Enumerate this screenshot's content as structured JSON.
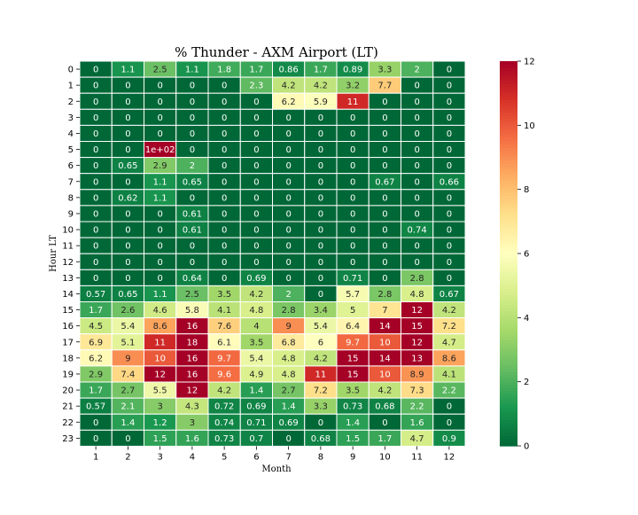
{
  "chart_data": {
    "type": "heatmap",
    "title": "% Thunder - AXM Airport (LT)",
    "xlabel": "Month",
    "ylabel": "Hour LT",
    "x": [
      "1",
      "2",
      "3",
      "4",
      "5",
      "6",
      "7",
      "8",
      "9",
      "10",
      "11",
      "12"
    ],
    "y": [
      "0",
      "1",
      "2",
      "3",
      "4",
      "5",
      "6",
      "7",
      "8",
      "9",
      "10",
      "11",
      "12",
      "13",
      "14",
      "15",
      "16",
      "17",
      "18",
      "19",
      "20",
      "21",
      "22",
      "23"
    ],
    "values": [
      [
        0,
        1.1,
        2.5,
        1.1,
        1.8,
        1.7,
        0.86,
        1.7,
        0.89,
        3.3,
        2,
        0
      ],
      [
        0,
        0,
        0,
        0,
        0,
        2.3,
        4.2,
        4.2,
        3.2,
        7.7,
        0,
        0
      ],
      [
        0,
        0,
        0,
        0,
        0,
        0,
        6.2,
        5.9,
        11,
        0,
        0,
        0
      ],
      [
        0,
        0,
        0,
        0,
        0,
        0,
        0,
        0,
        0,
        0,
        0,
        0
      ],
      [
        0,
        0,
        0,
        0,
        0,
        0,
        0,
        0,
        0,
        0,
        0,
        0
      ],
      [
        0,
        0,
        100,
        0,
        0,
        0,
        0,
        0,
        0,
        0,
        0,
        0
      ],
      [
        0,
        0.65,
        2.9,
        2,
        0,
        0,
        0,
        0,
        0,
        0,
        0,
        0
      ],
      [
        0,
        0,
        1.1,
        0.65,
        0,
        0,
        0,
        0,
        0,
        0.67,
        0,
        0.66
      ],
      [
        0,
        0.62,
        1.1,
        0,
        0,
        0,
        0,
        0,
        0,
        0,
        0,
        0
      ],
      [
        0,
        0,
        0,
        0.61,
        0,
        0,
        0,
        0,
        0,
        0,
        0,
        0
      ],
      [
        0,
        0,
        0,
        0.61,
        0,
        0,
        0,
        0,
        0,
        0,
        0.74,
        0
      ],
      [
        0,
        0,
        0,
        0,
        0,
        0,
        0,
        0,
        0,
        0,
        0,
        0
      ],
      [
        0,
        0,
        0,
        0,
        0,
        0,
        0,
        0,
        0,
        0,
        0,
        0
      ],
      [
        0,
        0,
        0,
        0.64,
        0,
        0.69,
        0,
        0,
        0.71,
        0,
        2.8,
        0
      ],
      [
        0.57,
        0.65,
        1.1,
        2.5,
        3.5,
        4.2,
        2,
        0,
        5.7,
        2.8,
        4.8,
        0.67
      ],
      [
        1.7,
        2.6,
        4.6,
        5.8,
        4.1,
        4.8,
        2.8,
        3.4,
        5,
        7,
        12,
        4.2
      ],
      [
        4.5,
        5.4,
        8.6,
        16,
        7.6,
        4,
        9,
        5.4,
        6.4,
        14,
        15,
        7.2
      ],
      [
        6.9,
        5.1,
        11,
        18,
        6.1,
        3.5,
        6.8,
        6,
        9.7,
        10,
        12,
        4.7
      ],
      [
        6.2,
        9,
        10,
        16,
        9.7,
        5.4,
        4.8,
        4.2,
        15,
        14,
        13,
        8.6
      ],
      [
        2.9,
        7.4,
        12,
        16,
        9.6,
        4.9,
        4.8,
        11,
        15,
        10,
        8.9,
        4.1
      ],
      [
        1.7,
        2.7,
        5.5,
        12,
        4.2,
        1.4,
        2.7,
        7.2,
        3.5,
        4.2,
        7.3,
        2.2
      ],
      [
        0.57,
        2.1,
        3,
        4.3,
        0.72,
        0.69,
        1.4,
        3.3,
        0.73,
        0.68,
        2.2,
        0
      ],
      [
        0,
        1.4,
        1.2,
        3,
        0.74,
        0.71,
        0.69,
        0,
        1.4,
        0,
        1.6,
        0
      ],
      [
        0,
        0,
        1.5,
        1.6,
        0.73,
        0.7,
        0,
        0.68,
        1.5,
        1.7,
        4.7,
        0.9
      ]
    ],
    "cell_labels": [
      [
        "0",
        "1.1",
        "2.5",
        "1.1",
        "1.8",
        "1.7",
        "0.86",
        "1.7",
        "0.89",
        "3.3",
        "2",
        "0"
      ],
      [
        "0",
        "0",
        "0",
        "0",
        "0",
        "2.3",
        "4.2",
        "4.2",
        "3.2",
        "7.7",
        "0",
        "0"
      ],
      [
        "0",
        "0",
        "0",
        "0",
        "0",
        "0",
        "6.2",
        "5.9",
        "11",
        "0",
        "0",
        "0"
      ],
      [
        "0",
        "0",
        "0",
        "0",
        "0",
        "0",
        "0",
        "0",
        "0",
        "0",
        "0",
        "0"
      ],
      [
        "0",
        "0",
        "0",
        "0",
        "0",
        "0",
        "0",
        "0",
        "0",
        "0",
        "0",
        "0"
      ],
      [
        "0",
        "0",
        "1e+02",
        "0",
        "0",
        "0",
        "0",
        "0",
        "0",
        "0",
        "0",
        "0"
      ],
      [
        "0",
        "0.65",
        "2.9",
        "2",
        "0",
        "0",
        "0",
        "0",
        "0",
        "0",
        "0",
        "0"
      ],
      [
        "0",
        "0",
        "1.1",
        "0.65",
        "0",
        "0",
        "0",
        "0",
        "0",
        "0.67",
        "0",
        "0.66"
      ],
      [
        "0",
        "0.62",
        "1.1",
        "0",
        "0",
        "0",
        "0",
        "0",
        "0",
        "0",
        "0",
        "0"
      ],
      [
        "0",
        "0",
        "0",
        "0.61",
        "0",
        "0",
        "0",
        "0",
        "0",
        "0",
        "0",
        "0"
      ],
      [
        "0",
        "0",
        "0",
        "0.61",
        "0",
        "0",
        "0",
        "0",
        "0",
        "0",
        "0.74",
        "0"
      ],
      [
        "0",
        "0",
        "0",
        "0",
        "0",
        "0",
        "0",
        "0",
        "0",
        "0",
        "0",
        "0"
      ],
      [
        "0",
        "0",
        "0",
        "0",
        "0",
        "0",
        "0",
        "0",
        "0",
        "0",
        "0",
        "0"
      ],
      [
        "0",
        "0",
        "0",
        "0.64",
        "0",
        "0.69",
        "0",
        "0",
        "0.71",
        "0",
        "2.8",
        "0"
      ],
      [
        "0.57",
        "0.65",
        "1.1",
        "2.5",
        "3.5",
        "4.2",
        "2",
        "0",
        "5.7",
        "2.8",
        "4.8",
        "0.67"
      ],
      [
        "1.7",
        "2.6",
        "4.6",
        "5.8",
        "4.1",
        "4.8",
        "2.8",
        "3.4",
        "5",
        "7",
        "12",
        "4.2"
      ],
      [
        "4.5",
        "5.4",
        "8.6",
        "16",
        "7.6",
        "4",
        "9",
        "5.4",
        "6.4",
        "14",
        "15",
        "7.2"
      ],
      [
        "6.9",
        "5.1",
        "11",
        "18",
        "6.1",
        "3.5",
        "6.8",
        "6",
        "9.7",
        "10",
        "12",
        "4.7"
      ],
      [
        "6.2",
        "9",
        "10",
        "16",
        "9.7",
        "5.4",
        "4.8",
        "4.2",
        "15",
        "14",
        "13",
        "8.6"
      ],
      [
        "2.9",
        "7.4",
        "12",
        "16",
        "9.6",
        "4.9",
        "4.8",
        "11",
        "15",
        "10",
        "8.9",
        "4.1"
      ],
      [
        "1.7",
        "2.7",
        "5.5",
        "12",
        "4.2",
        "1.4",
        "2.7",
        "7.2",
        "3.5",
        "4.2",
        "7.3",
        "2.2"
      ],
      [
        "0.57",
        "2.1",
        "3",
        "4.3",
        "0.72",
        "0.69",
        "1.4",
        "3.3",
        "0.73",
        "0.68",
        "2.2",
        "0"
      ],
      [
        "0",
        "1.4",
        "1.2",
        "3",
        "0.74",
        "0.71",
        "0.69",
        "0",
        "1.4",
        "0",
        "1.6",
        "0"
      ],
      [
        "0",
        "0",
        "1.5",
        "1.6",
        "0.73",
        "0.7",
        "0",
        "0.68",
        "1.5",
        "1.7",
        "4.7",
        "0.9"
      ]
    ],
    "colorscale": "RdYlGn_r",
    "vmin": 0,
    "vmax": 12,
    "colorbar_ticks": [
      "0",
      "2",
      "4",
      "6",
      "8",
      "10",
      "12"
    ],
    "grid": false,
    "legend": "colorbar-right"
  }
}
